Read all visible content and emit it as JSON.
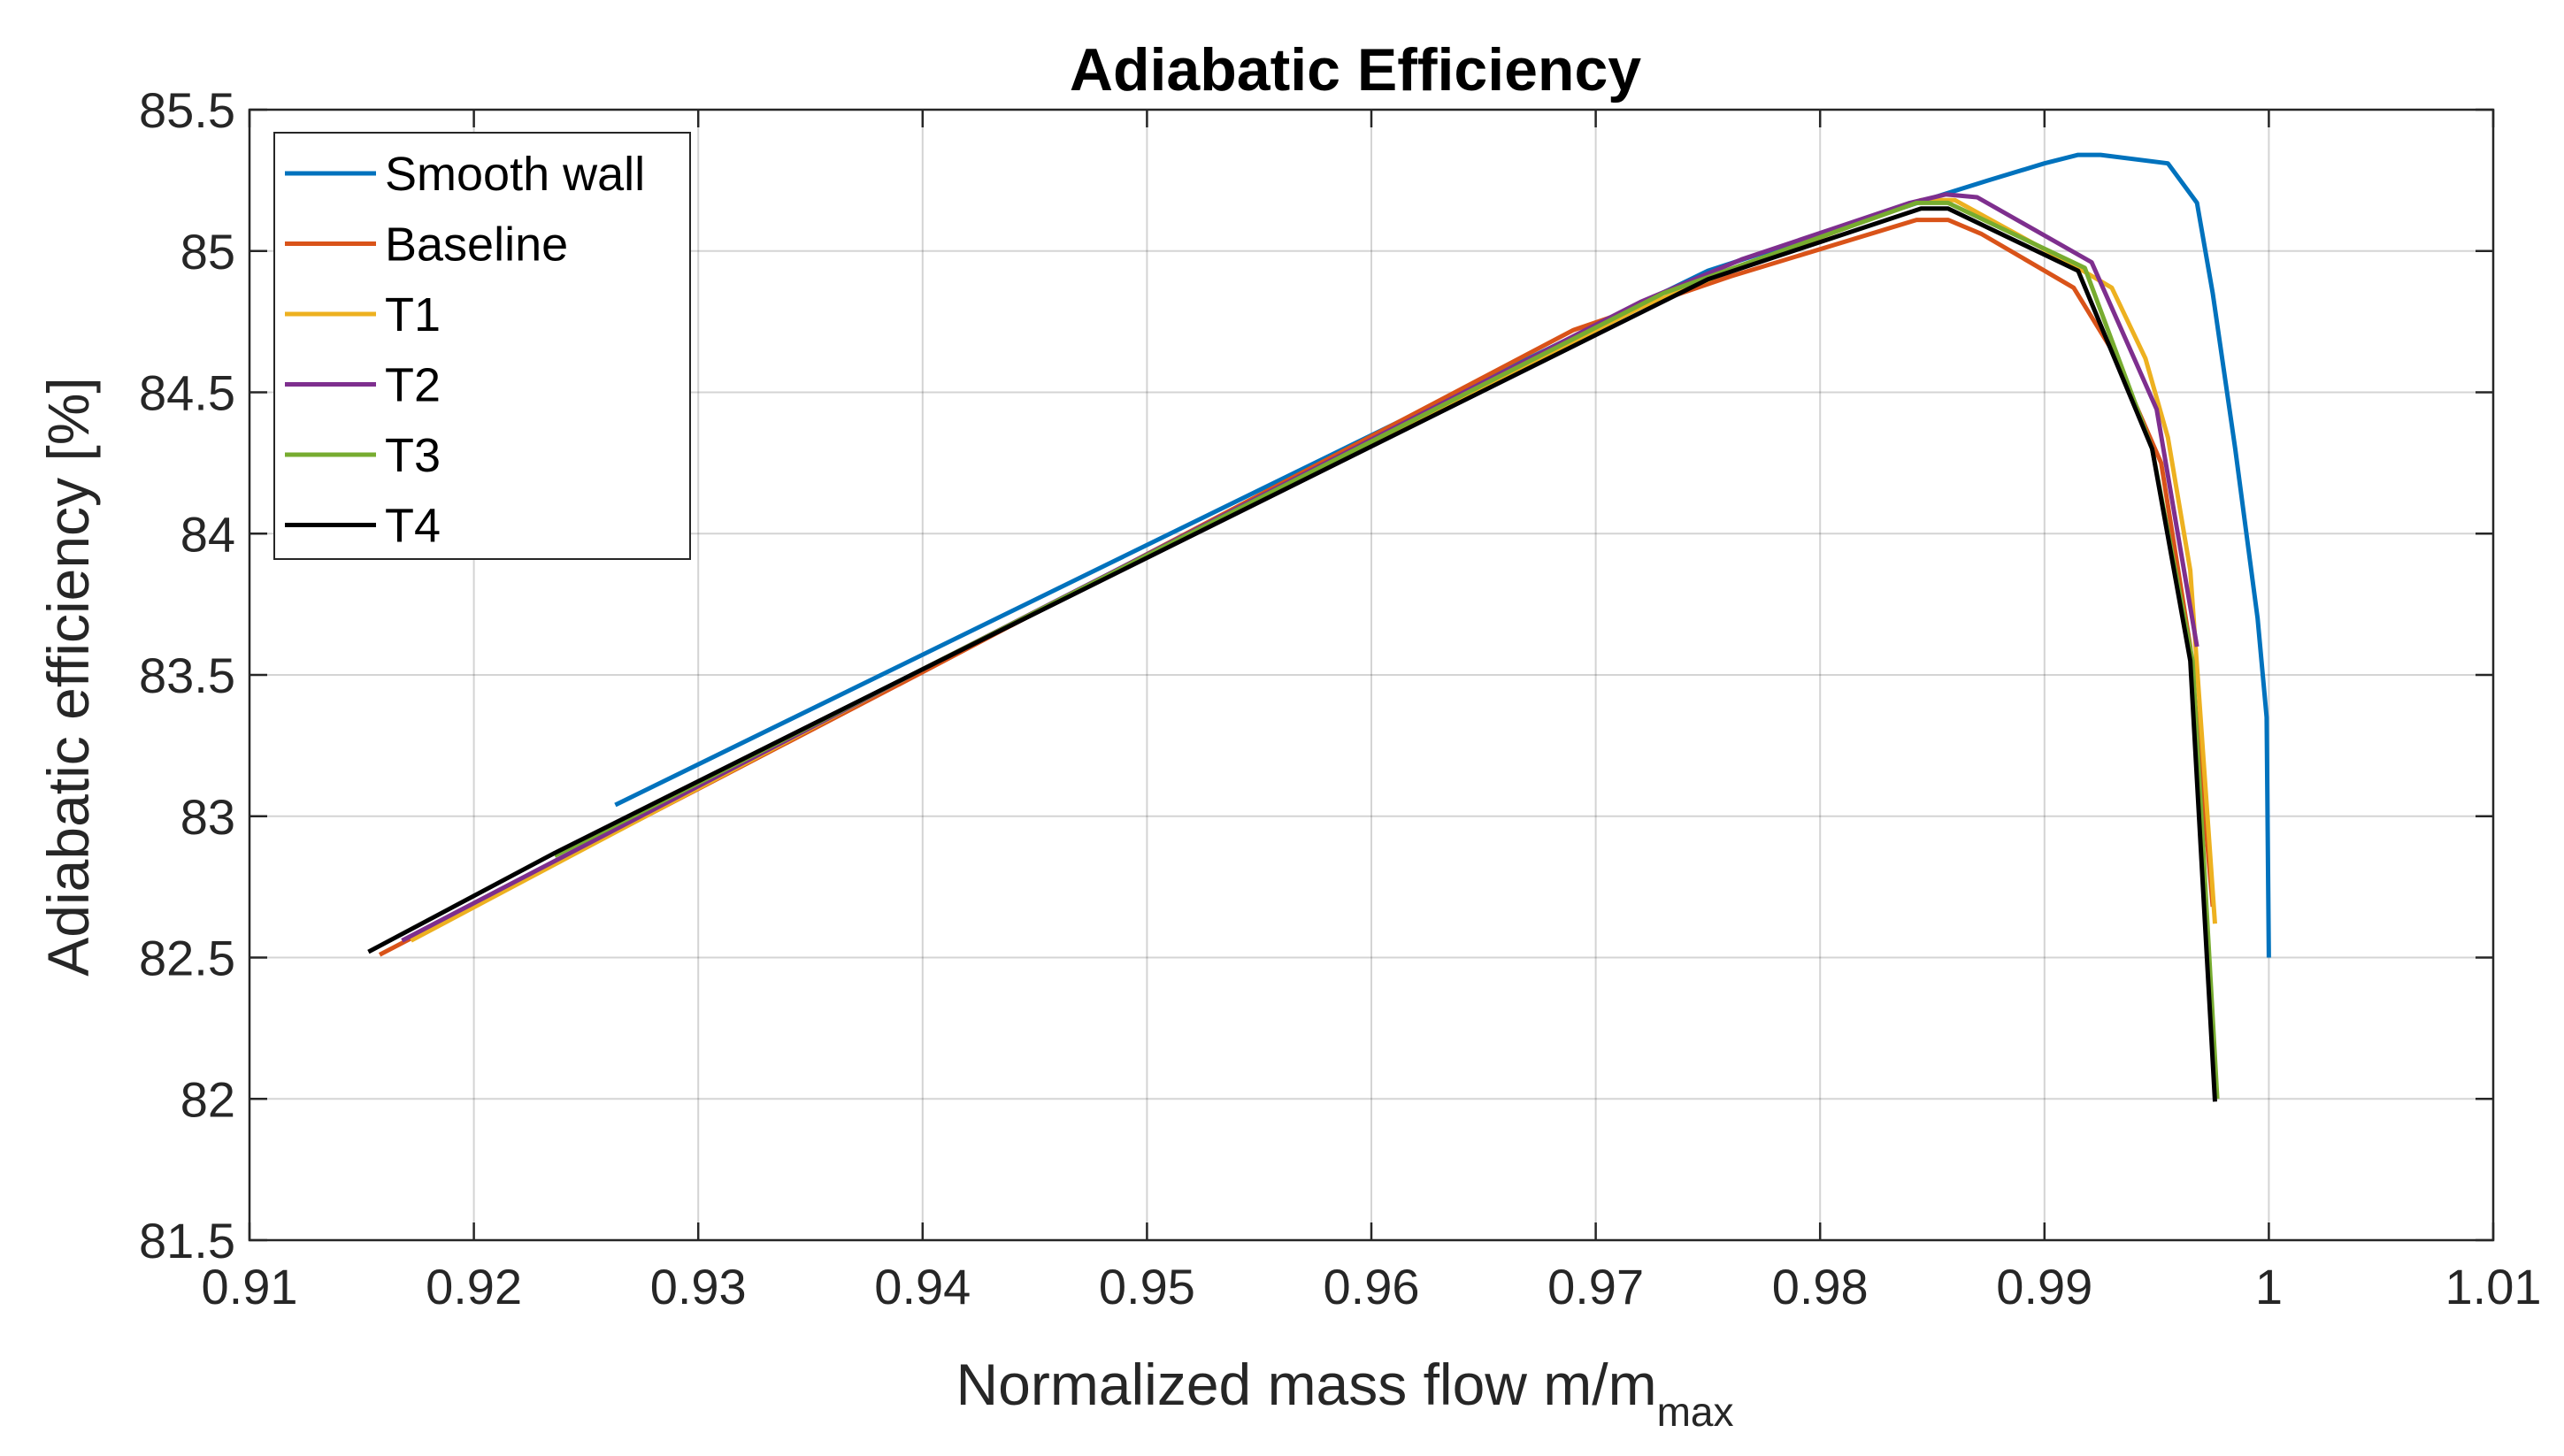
{
  "chart_data": {
    "type": "line",
    "title": "Adiabatic Efficiency",
    "xlabel": "Normalized mass flow m/m",
    "xlabel_subscript": "max",
    "ylabel": "Adiabatic efficiency [%]",
    "xlim": [
      0.91,
      1.01
    ],
    "ylim": [
      81.5,
      85.5
    ],
    "xticks": [
      0.91,
      0.92,
      0.93,
      0.94,
      0.95,
      0.96,
      0.97,
      0.98,
      0.99,
      1,
      1.01
    ],
    "xtick_labels": [
      "0.91",
      "0.92",
      "0.93",
      "0.94",
      "0.95",
      "0.96",
      "0.97",
      "0.98",
      "0.99",
      "1",
      "1.01"
    ],
    "yticks": [
      81.5,
      82,
      82.5,
      83,
      83.5,
      84,
      84.5,
      85,
      85.5
    ],
    "ytick_labels": [
      "81.5",
      "82",
      "82.5",
      "83",
      "83.5",
      "84",
      "84.5",
      "85",
      "85.5"
    ],
    "grid": true,
    "legend_position": "top-left",
    "series": [
      {
        "name": "Smooth wall",
        "color": "#0072BD",
        "x": [
          0.9263,
          0.975,
          0.9855,
          0.9875,
          0.99,
          0.9915,
          0.9925,
          0.9955,
          0.9968,
          0.9975,
          0.9985,
          0.9995,
          0.9999,
          1.0
        ],
        "y": [
          83.04,
          84.93,
          85.2,
          85.25,
          85.31,
          85.34,
          85.34,
          85.31,
          85.17,
          84.85,
          84.3,
          83.7,
          83.35,
          82.5
        ]
      },
      {
        "name": "Baseline",
        "color": "#D95319",
        "x": [
          0.9158,
          0.94,
          0.969,
          0.976,
          0.9843,
          0.9857,
          0.9872,
          0.9913,
          0.993,
          0.9952,
          0.9965,
          0.9975
        ],
        "y": [
          82.51,
          83.51,
          84.72,
          84.91,
          85.11,
          85.11,
          85.06,
          84.87,
          84.65,
          84.25,
          83.6,
          82.68
        ]
      },
      {
        "name": "T1",
        "color": "#EDB120",
        "x": [
          0.9172,
          0.94,
          0.972,
          0.976,
          0.9845,
          0.986,
          0.9915,
          0.993,
          0.9945,
          0.9955,
          0.9965,
          0.9976
        ],
        "y": [
          82.56,
          83.52,
          84.8,
          84.93,
          85.18,
          85.18,
          84.94,
          84.87,
          84.62,
          84.34,
          83.87,
          82.62
        ]
      },
      {
        "name": "T2",
        "color": "#7E2F8E",
        "x": [
          0.9168,
          0.94,
          0.972,
          0.9765,
          0.984,
          0.9856,
          0.987,
          0.9921,
          0.995,
          0.9968
        ],
        "y": [
          82.56,
          83.52,
          84.82,
          84.97,
          85.17,
          85.2,
          85.19,
          84.96,
          84.44,
          83.6
        ]
      },
      {
        "name": "T3",
        "color": "#77AC30",
        "x": [
          0.9236,
          0.94,
          0.973,
          0.9765,
          0.9843,
          0.9857,
          0.9918,
          0.9948,
          0.9966,
          0.9977
        ],
        "y": [
          82.86,
          83.52,
          84.85,
          84.95,
          85.17,
          85.17,
          84.94,
          84.3,
          83.55,
          82.0
        ]
      },
      {
        "name": "T4",
        "color": "#000000",
        "x": [
          0.9153,
          0.9236,
          0.94,
          0.975,
          0.9845,
          0.9857,
          0.9915,
          0.9948,
          0.9965,
          0.9976
        ],
        "y": [
          82.52,
          82.87,
          83.52,
          84.9,
          85.15,
          85.15,
          84.93,
          84.3,
          83.55,
          81.99
        ]
      }
    ]
  }
}
